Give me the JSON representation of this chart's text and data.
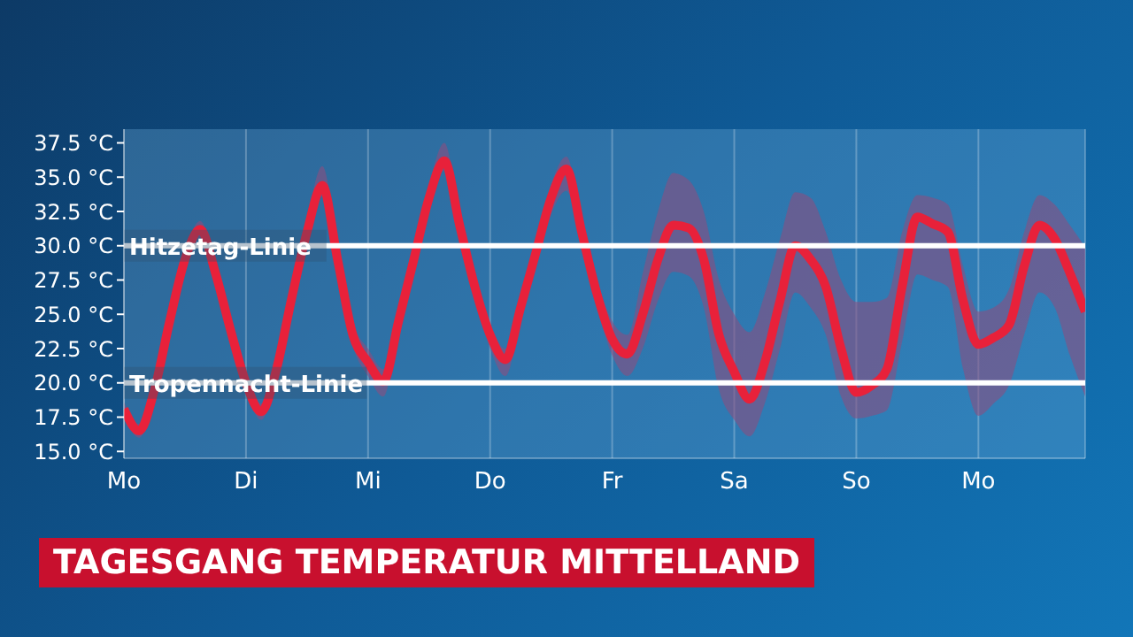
{
  "chart_data": {
    "type": "line",
    "title": "TAGESGANG TEMPERATUR MITTELLAND",
    "categories": [
      "Mo",
      null,
      null,
      null,
      null,
      null,
      null,
      null,
      "Di",
      null,
      null,
      null,
      null,
      null,
      null,
      null,
      "Mi",
      null,
      null,
      null,
      null,
      null,
      null,
      null,
      "Do",
      null,
      null,
      null,
      null,
      null,
      null,
      null,
      "Fr",
      null,
      null,
      null,
      null,
      null,
      null,
      null,
      "Sa",
      null,
      null,
      null,
      null,
      null,
      null,
      null,
      "So",
      null,
      null,
      null,
      null,
      null,
      null,
      null,
      "Mo",
      null,
      null,
      null,
      null,
      null,
      null,
      null
    ],
    "series": [
      {
        "color": "#e8213a",
        "values": [
          18.1,
          16.5,
          19.5,
          24.5,
          29,
          31.2,
          28,
          23.8,
          20,
          17.9,
          21,
          26.2,
          31,
          34.4,
          29,
          23.5,
          21.5,
          20.1,
          24.5,
          29,
          33.5,
          36.2,
          31.5,
          27,
          23.5,
          21.7,
          25.5,
          29.5,
          33.5,
          35.6,
          31,
          26.5,
          23.2,
          22.1,
          25,
          29,
          31.5,
          31.3,
          29,
          23.5,
          20.8,
          18.8,
          21.5,
          26,
          30,
          29,
          27,
          22.5,
          19.3,
          19.8,
          21,
          27,
          32.1,
          31.6,
          31,
          26,
          22.8,
          23.3,
          24.2,
          28.5,
          31.5,
          30.5,
          28,
          25.2
        ],
        "lower": [
          17.6,
          16,
          19,
          24,
          28.4,
          30.6,
          27.4,
          23.3,
          19.4,
          17.3,
          20.4,
          25.6,
          30.3,
          33.6,
          28.2,
          22.7,
          20.5,
          19,
          23.8,
          28.3,
          32.8,
          35.5,
          30.8,
          26.3,
          22.5,
          20.5,
          24.5,
          28.5,
          32.3,
          34,
          30,
          25.5,
          22,
          20.5,
          22.5,
          26,
          28.1,
          27.8,
          25.5,
          19.5,
          17.3,
          16.1,
          18.5,
          22.5,
          26.6,
          25.5,
          23.5,
          19,
          17.4,
          17.6,
          18,
          23,
          27.9,
          27.5,
          27,
          21,
          17.6,
          18.5,
          19.8,
          23.5,
          26.6,
          25.5,
          22,
          19
        ],
        "upper": [
          18.6,
          17,
          20,
          25,
          29.6,
          31.8,
          28.6,
          24.3,
          20.6,
          18.5,
          21.6,
          26.8,
          32,
          35.8,
          30.2,
          24.4,
          22.5,
          21,
          25.2,
          29.7,
          34.5,
          37.5,
          32.2,
          27.7,
          24.3,
          22.5,
          26.3,
          30.3,
          34.5,
          36.5,
          32,
          27.5,
          24.5,
          23.5,
          28,
          32.5,
          35.3,
          34.8,
          32.5,
          27.5,
          25,
          23.7,
          26.5,
          30.5,
          33.9,
          33.5,
          31,
          27.5,
          25.9,
          25.9,
          26.2,
          31,
          33.7,
          33.5,
          33,
          28.5,
          25.2,
          25.5,
          26.8,
          31,
          33.7,
          33,
          31.5,
          29.9
        ]
      }
    ],
    "ylim": [
      14.5,
      38.5
    ],
    "yticks": [
      {
        "value": 15,
        "label": "15.0 °C"
      },
      {
        "value": 17.5,
        "label": "17.5 °C"
      },
      {
        "value": 20,
        "label": "20.0 °C"
      },
      {
        "value": 22.5,
        "label": "22.5 °C"
      },
      {
        "value": 25,
        "label": "25.0 °C"
      },
      {
        "value": 27.5,
        "label": "27.5 °C"
      },
      {
        "value": 30,
        "label": "30.0 °C"
      },
      {
        "value": 32.5,
        "label": "32.5 °C"
      },
      {
        "value": 35,
        "label": "35.0 °C"
      },
      {
        "value": 37.5,
        "label": "37.5 °C"
      }
    ],
    "ref_lines": [
      {
        "axis": "y",
        "value": 30,
        "label": "Hitzetag-Linie",
        "color": "#ffffff"
      },
      {
        "axis": "y",
        "value": 20,
        "label": "Tropennacht-Linie",
        "color": "#ffffff"
      }
    ],
    "grid": "x",
    "legend": false
  }
}
